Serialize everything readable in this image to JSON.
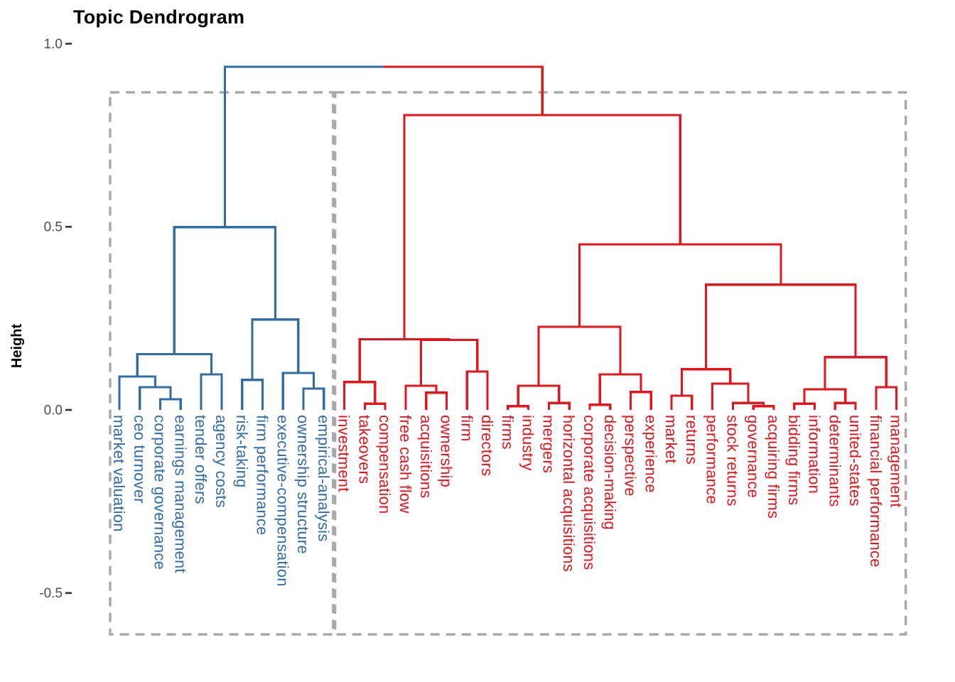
{
  "title": "Topic Dendrogram",
  "y_axis": {
    "title": "Height",
    "tick_labels": [
      "1.0",
      "0.5",
      "0.0",
      "-0.5"
    ]
  },
  "chart_data": {
    "type": "dendrogram",
    "title": "Topic Dendrogram",
    "xlabel": "",
    "ylabel": "Height",
    "ylim": [
      -0.5,
      1.0
    ],
    "grid": false,
    "legend": "none",
    "orientation": "vertical",
    "leaf_height": 0.0,
    "y_ticks": [
      {
        "value": 1.0,
        "label": "1.0"
      },
      {
        "value": 0.5,
        "label": "0.5"
      },
      {
        "value": 0.0,
        "label": "0.0"
      },
      {
        "value": -0.5,
        "label": "-0.5"
      }
    ],
    "clusters": [
      {
        "name": "topic-cluster-blue",
        "color": "#316CA5",
        "dashed_box": true
      },
      {
        "name": "topic-cluster-red",
        "color": "#E2151C",
        "dashed_box": true
      }
    ],
    "box_style": {
      "color": "#A9A9A9",
      "dashed": true
    },
    "leaves": [
      {
        "label": "market valuation",
        "cluster": 0
      },
      {
        "label": "ceo turnover",
        "cluster": 0
      },
      {
        "label": "corporate governance",
        "cluster": 0
      },
      {
        "label": "earnings management",
        "cluster": 0
      },
      {
        "label": "tender offers",
        "cluster": 0
      },
      {
        "label": "agency costs",
        "cluster": 0
      },
      {
        "label": "risk-taking",
        "cluster": 0
      },
      {
        "label": "firm performance",
        "cluster": 0
      },
      {
        "label": "executive-compensation",
        "cluster": 0
      },
      {
        "label": "ownership structure",
        "cluster": 0
      },
      {
        "label": "empirical-analysis",
        "cluster": 0
      },
      {
        "label": "investment",
        "cluster": 1
      },
      {
        "label": "takeovers",
        "cluster": 1
      },
      {
        "label": "compensation",
        "cluster": 1
      },
      {
        "label": "free cash flow",
        "cluster": 1
      },
      {
        "label": "acquisitions",
        "cluster": 1
      },
      {
        "label": "ownership",
        "cluster": 1
      },
      {
        "label": "firm",
        "cluster": 1
      },
      {
        "label": "directors",
        "cluster": 1
      },
      {
        "label": "firms",
        "cluster": 1
      },
      {
        "label": "industry",
        "cluster": 1
      },
      {
        "label": "mergers",
        "cluster": 1
      },
      {
        "label": "horizontal acquisitions",
        "cluster": 1
      },
      {
        "label": "corporate acquisitions",
        "cluster": 1
      },
      {
        "label": "decision-making",
        "cluster": 1
      },
      {
        "label": "perspective",
        "cluster": 1
      },
      {
        "label": "experience",
        "cluster": 1
      },
      {
        "label": "market",
        "cluster": 1
      },
      {
        "label": "returns",
        "cluster": 1
      },
      {
        "label": "performance",
        "cluster": 1
      },
      {
        "label": "stock returns",
        "cluster": 1
      },
      {
        "label": "governance",
        "cluster": 1
      },
      {
        "label": "acquiring firms",
        "cluster": 1
      },
      {
        "label": "bidding firms",
        "cluster": 1
      },
      {
        "label": "information",
        "cluster": 1
      },
      {
        "label": "determinants",
        "cluster": 1
      },
      {
        "label": "united-states",
        "cluster": 1
      },
      {
        "label": "financial performance",
        "cluster": 1
      },
      {
        "label": "management",
        "cluster": 1
      }
    ],
    "merges": [
      {
        "a": "L2",
        "b": "L3",
        "h": 0.029,
        "cluster": 0
      },
      {
        "a": "L1",
        "b": "M0",
        "h": 0.062,
        "cluster": 0
      },
      {
        "a": "L0",
        "b": "M1",
        "h": 0.091,
        "cluster": 0
      },
      {
        "a": "L4",
        "b": "L5",
        "h": 0.097,
        "cluster": 0
      },
      {
        "a": "M2",
        "b": "M3",
        "h": 0.152,
        "cluster": 0
      },
      {
        "a": "L6",
        "b": "L7",
        "h": 0.082,
        "cluster": 0
      },
      {
        "a": "L9",
        "b": "L10",
        "h": 0.058,
        "cluster": 0
      },
      {
        "a": "L8",
        "b": "M6",
        "h": 0.101,
        "cluster": 0
      },
      {
        "a": "M5",
        "b": "M7",
        "h": 0.247,
        "cluster": 0
      },
      {
        "a": "M4",
        "b": "M8",
        "h": 0.499,
        "cluster": 0
      },
      {
        "a": "L12",
        "b": "L13",
        "h": 0.017,
        "cluster": 1
      },
      {
        "a": "L11",
        "b": "M10",
        "h": 0.076,
        "cluster": 1
      },
      {
        "a": "L15",
        "b": "L16",
        "h": 0.047,
        "cluster": 1
      },
      {
        "a": "L14",
        "b": "M12",
        "h": 0.066,
        "cluster": 1
      },
      {
        "a": "L17",
        "b": "L18",
        "h": 0.105,
        "cluster": 1
      },
      {
        "a": "M13",
        "b": "M14",
        "h": 0.191,
        "cluster": 1
      },
      {
        "a": "M11",
        "b": "M15",
        "h": 0.193,
        "cluster": 1
      },
      {
        "a": "L19",
        "b": "L20",
        "h": 0.01,
        "cluster": 1
      },
      {
        "a": "L21",
        "b": "L22",
        "h": 0.019,
        "cluster": 1
      },
      {
        "a": "M17",
        "b": "M18",
        "h": 0.066,
        "cluster": 1
      },
      {
        "a": "L23",
        "b": "L24",
        "h": 0.014,
        "cluster": 1
      },
      {
        "a": "L25",
        "b": "L26",
        "h": 0.049,
        "cluster": 1
      },
      {
        "a": "M20",
        "b": "M21",
        "h": 0.097,
        "cluster": 1
      },
      {
        "a": "M19",
        "b": "M22",
        "h": 0.227,
        "cluster": 1
      },
      {
        "a": "L27",
        "b": "L28",
        "h": 0.039,
        "cluster": 1
      },
      {
        "a": "L31",
        "b": "L32",
        "h": 0.01,
        "cluster": 1
      },
      {
        "a": "L30",
        "b": "M25",
        "h": 0.019,
        "cluster": 1
      },
      {
        "a": "L29",
        "b": "M26",
        "h": 0.072,
        "cluster": 1
      },
      {
        "a": "M24",
        "b": "M27",
        "h": 0.111,
        "cluster": 1
      },
      {
        "a": "L33",
        "b": "L34",
        "h": 0.017,
        "cluster": 1
      },
      {
        "a": "L35",
        "b": "L36",
        "h": 0.019,
        "cluster": 1
      },
      {
        "a": "M29",
        "b": "M30",
        "h": 0.056,
        "cluster": 1
      },
      {
        "a": "L37",
        "b": "L38",
        "h": 0.062,
        "cluster": 1
      },
      {
        "a": "M31",
        "b": "M32",
        "h": 0.144,
        "cluster": 1
      },
      {
        "a": "M28",
        "b": "M33",
        "h": 0.342,
        "cluster": 1
      },
      {
        "a": "M23",
        "b": "M34",
        "h": 0.452,
        "cluster": 1
      },
      {
        "a": "M16",
        "b": "M35",
        "h": 0.805,
        "cluster": 1
      }
    ],
    "root": {
      "a": "M9",
      "b": "M36",
      "h": 0.937
    }
  }
}
